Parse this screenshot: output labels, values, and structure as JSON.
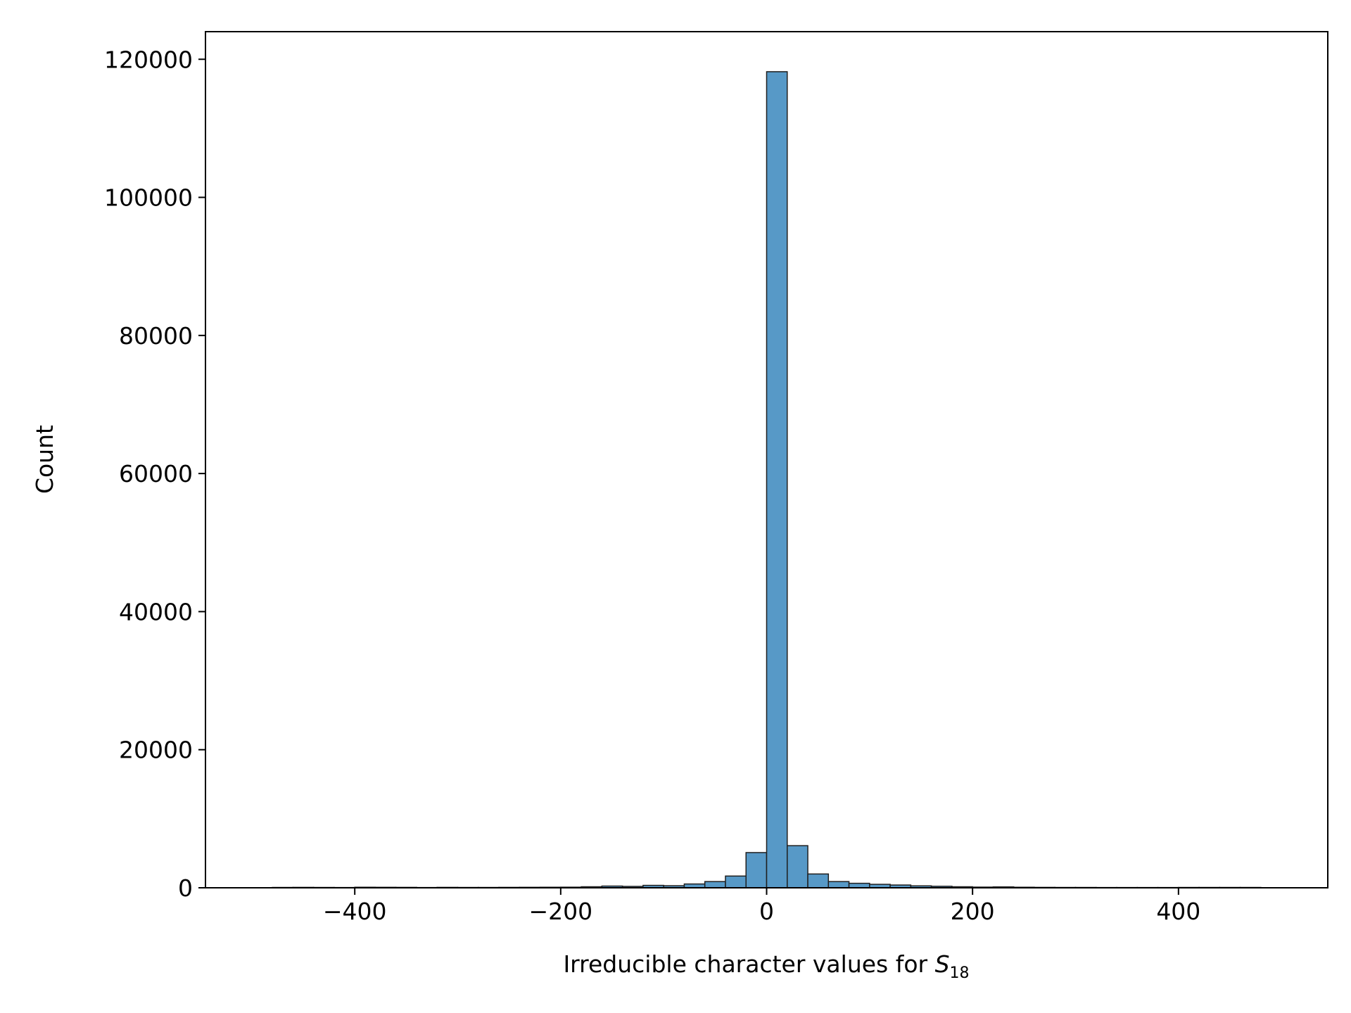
{
  "chart_data": {
    "type": "bar",
    "title": "",
    "xlabel": "Irreducible character values for ",
    "xlabel_math": "S",
    "xlabel_sub": "18",
    "ylabel": "Count",
    "xlim": [
      -545,
      545
    ],
    "ylim": [
      0,
      124000
    ],
    "x_ticks": [
      -400,
      -200,
      0,
      200,
      400
    ],
    "x_tick_labels": [
      "−400",
      "−200",
      "0",
      "200",
      "400"
    ],
    "y_ticks": [
      0,
      20000,
      40000,
      60000,
      80000,
      100000,
      120000
    ],
    "y_tick_labels": [
      "0",
      "20000",
      "40000",
      "60000",
      "80000",
      "100000",
      "120000"
    ],
    "grid": false,
    "legend": "none",
    "bar_color": "#5799c7",
    "edge_color": "#1f1f1f",
    "bin_width": 20,
    "bin_starts": [
      -480,
      -460,
      -440,
      -420,
      -400,
      -380,
      -360,
      -340,
      -320,
      -300,
      -280,
      -260,
      -240,
      -220,
      -200,
      -180,
      -160,
      -140,
      -120,
      -100,
      -80,
      -60,
      -40,
      -20,
      0,
      20,
      40,
      60,
      80,
      100,
      120,
      140,
      160,
      180,
      200,
      220,
      240,
      260,
      280,
      300,
      320,
      340,
      360,
      380,
      400,
      420,
      440,
      460
    ],
    "counts": [
      50,
      60,
      50,
      40,
      80,
      70,
      60,
      40,
      60,
      50,
      50,
      60,
      70,
      80,
      90,
      150,
      250,
      200,
      350,
      300,
      550,
      900,
      1700,
      5100,
      118200,
      6100,
      2000,
      900,
      650,
      500,
      400,
      280,
      220,
      150,
      100,
      130,
      80,
      60,
      50,
      50,
      40,
      40,
      40,
      40,
      50,
      50,
      50,
      50
    ]
  }
}
